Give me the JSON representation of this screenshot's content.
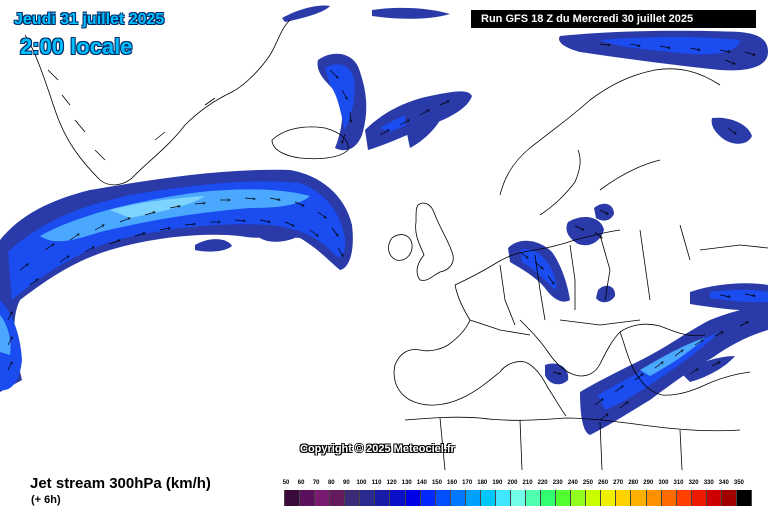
{
  "header": {
    "date": "Jeudi 31 juillet 2025",
    "local_time": "2:00 locale",
    "run": "Run GFS 18 Z du Mercredi 30 juillet 2025"
  },
  "copyright": "Copyright © 2025 Meteociel.fr",
  "footer": {
    "parameter": "Jet stream 300hPa (km/h)",
    "forecast_step": "(+ 6h)"
  },
  "legend": {
    "labels": [
      "50",
      "60",
      "70",
      "80",
      "90",
      "100",
      "110",
      "120",
      "130",
      "140",
      "150",
      "160",
      "170",
      "180",
      "190",
      "200",
      "210",
      "220",
      "230",
      "240",
      "250",
      "260",
      "270",
      "280",
      "290",
      "300",
      "310",
      "320",
      "330",
      "340",
      "350"
    ],
    "colors": [
      "#3a0a3a",
      "#5a105a",
      "#7a1a70",
      "#661a5e",
      "#3c2a78",
      "#2a2a90",
      "#1a1aa8",
      "#0a10c8",
      "#0000e6",
      "#0028ff",
      "#0050ff",
      "#0078ff",
      "#00a0ff",
      "#00c8ff",
      "#40e6ff",
      "#70ffe6",
      "#50ffb0",
      "#30ff70",
      "#50ff30",
      "#90ff20",
      "#c8ff00",
      "#f0f000",
      "#ffd200",
      "#ffb000",
      "#ff9000",
      "#ff6a00",
      "#ff4000",
      "#ee1a00",
      "#cc0000",
      "#a00000",
      "#000000"
    ]
  },
  "colors": {
    "jet_core": "#4aa8ff",
    "jet_mid": "#1a4cf0",
    "jet_edge": "#2a3aa8",
    "coast": "#000000",
    "background": "#ffffff"
  }
}
